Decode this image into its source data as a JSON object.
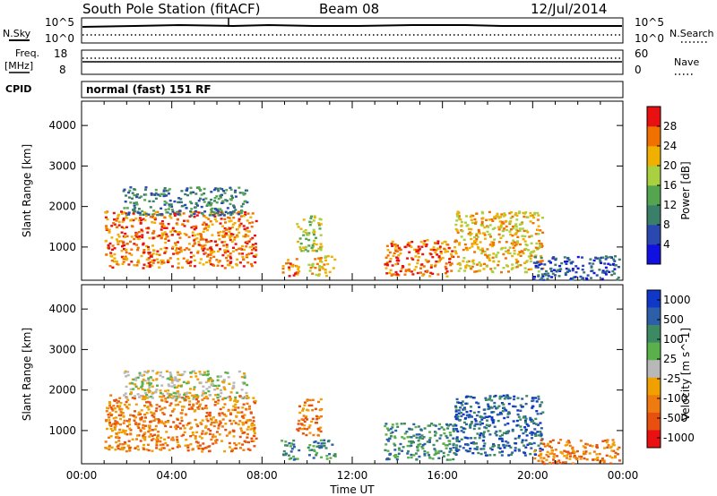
{
  "header": {
    "title": "South Pole Station (fitACF)",
    "beam": "Beam 08",
    "date": "12/Jul/2014"
  },
  "noise_panel": {
    "left_label": "N.Sky",
    "right_label": "N.Search",
    "ticks": [
      "10^5",
      "10^0"
    ]
  },
  "freq_panel": {
    "left_label_1": "Freq.",
    "left_label_2": "[MHz]",
    "left_ticks": [
      "18",
      "8"
    ],
    "right_label": "Nave",
    "right_ticks": [
      "60",
      "0"
    ]
  },
  "cpid_panel": {
    "label": "CPID",
    "mode": "normal (fast) 151 RF"
  },
  "colors": {
    "power": [
      "#1010e0",
      "#2a48b0",
      "#3a7f6a",
      "#55a550",
      "#a8d040",
      "#f0b000",
      "#f07000",
      "#e81010"
    ],
    "velocity": [
      "#1038c8",
      "#2d5fa8",
      "#3d8a62",
      "#5ab04a",
      "#b8b8b8",
      "#f0a000",
      "#ee7a10",
      "#e85010",
      "#e81010"
    ]
  },
  "chart_data": [
    {
      "type": "heatmap",
      "name": "power",
      "ylabel": "Slant Range [km]",
      "yticks": [
        "1000",
        "2000",
        "3000",
        "4000"
      ],
      "ylim": [
        180,
        4600
      ],
      "x_unit": "hours UT",
      "xlim": [
        0,
        24
      ],
      "colorbar_label": "Power [dB]",
      "colorbar_ticks": [
        "4",
        "8",
        "12",
        "16",
        "20",
        "24",
        "28"
      ],
      "echo_regions": [
        {
          "t0": 1.0,
          "t1": 7.7,
          "r0": 500,
          "r1": 1900,
          "level": 6
        },
        {
          "t0": 1.8,
          "t1": 7.3,
          "r0": 1800,
          "r1": 2500,
          "level": 2
        },
        {
          "t0": 8.8,
          "t1": 9.6,
          "r0": 300,
          "r1": 800,
          "level": 6
        },
        {
          "t0": 9.5,
          "t1": 10.6,
          "r0": 900,
          "r1": 1800,
          "level": 4
        },
        {
          "t0": 10.0,
          "t1": 11.2,
          "r0": 300,
          "r1": 800,
          "level": 5
        },
        {
          "t0": 13.4,
          "t1": 16.5,
          "r0": 300,
          "r1": 1200,
          "level": 6
        },
        {
          "t0": 16.5,
          "t1": 20.4,
          "r0": 400,
          "r1": 1900,
          "level": 5
        },
        {
          "t0": 20.0,
          "t1": 23.8,
          "r0": 200,
          "r1": 800,
          "level": 1
        }
      ]
    },
    {
      "type": "heatmap",
      "name": "velocity",
      "ylabel": "Slant Range [km]",
      "yticks": [
        "1000",
        "2000",
        "3000",
        "4000"
      ],
      "ylim": [
        180,
        4600
      ],
      "xlabel": "Time UT",
      "xticks": [
        "00:00",
        "04:00",
        "08:00",
        "12:00",
        "16:00",
        "20:00",
        "00:00"
      ],
      "xlim": [
        0,
        24
      ],
      "colorbar_label": "Velocity [m s^-1]",
      "colorbar_ticks": [
        "1000",
        "500",
        "100",
        "25",
        "-25",
        "-100",
        "-500",
        "-1000"
      ],
      "echo_regions": [
        {
          "t0": 1.0,
          "t1": 7.7,
          "r0": 500,
          "r1": 1900,
          "level": 6
        },
        {
          "t0": 1.8,
          "t1": 7.3,
          "r0": 1800,
          "r1": 2500,
          "level": 4
        },
        {
          "t0": 8.8,
          "t1": 9.6,
          "r0": 300,
          "r1": 800,
          "level": 2
        },
        {
          "t0": 9.5,
          "t1": 10.6,
          "r0": 900,
          "r1": 1800,
          "level": 6
        },
        {
          "t0": 10.0,
          "t1": 11.2,
          "r0": 300,
          "r1": 800,
          "level": 2
        },
        {
          "t0": 13.4,
          "t1": 16.5,
          "r0": 300,
          "r1": 1200,
          "level": 2
        },
        {
          "t0": 16.5,
          "t1": 20.4,
          "r0": 400,
          "r1": 1900,
          "level": 1
        },
        {
          "t0": 20.0,
          "t1": 23.8,
          "r0": 200,
          "r1": 800,
          "level": 6
        }
      ]
    }
  ]
}
